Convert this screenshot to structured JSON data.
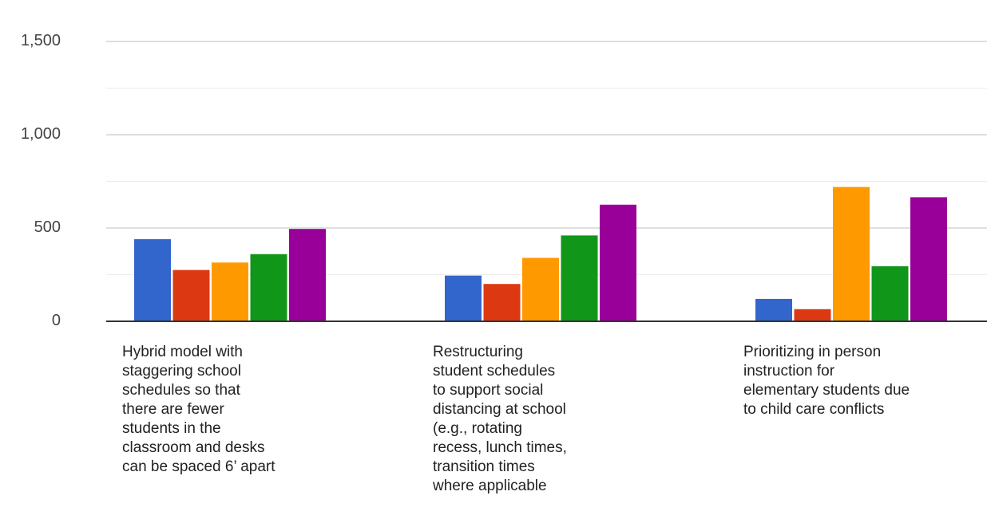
{
  "chart_data": {
    "type": "bar",
    "title": "",
    "xlabel": "",
    "ylabel": "",
    "ylim": [
      0,
      1500
    ],
    "yticks": [
      {
        "value": 0,
        "label": "0"
      },
      {
        "value": 500,
        "label": "500"
      },
      {
        "value": 1000,
        "label": "1,000"
      },
      {
        "value": 1500,
        "label": "1,500"
      }
    ],
    "minor_grid": [
      250,
      750,
      1250
    ],
    "grid": true,
    "legend": "none",
    "categories": [
      "Hybrid model with\nstaggering school\nschedules so that\nthere are fewer\nstudents in the\nclassroom and desks\ncan be spaced 6’ apart",
      "Restructuring\nstudent schedules\nto support social\ndistancing at school\n(e.g., rotating\nrecess, lunch times,\ntransition times\nwhere applicable",
      "Prioritizing in person\ninstruction for\nelementary students due\nto child care conflicts"
    ],
    "series": [
      {
        "color": "#3366cc",
        "values": [
          440,
          245,
          120
        ]
      },
      {
        "color": "#dc3912",
        "values": [
          275,
          200,
          65
        ]
      },
      {
        "color": "#ff9900",
        "values": [
          315,
          340,
          720
        ]
      },
      {
        "color": "#109618",
        "values": [
          360,
          460,
          295
        ]
      },
      {
        "color": "#990099",
        "values": [
          495,
          625,
          665
        ]
      }
    ]
  }
}
